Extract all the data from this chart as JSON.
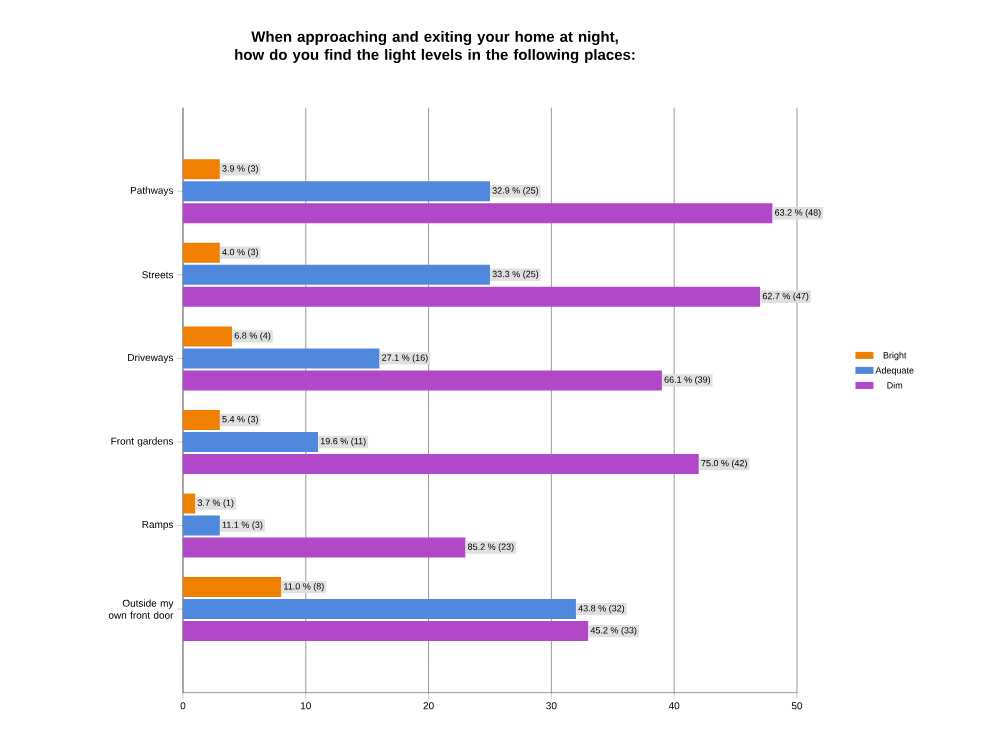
{
  "chart_data": {
    "type": "bar",
    "orientation": "horizontal",
    "title": "When approaching and exiting your home at night, how do you find the light levels in the following places:",
    "categories": [
      "Pathways",
      "Streets",
      "Driveways",
      "Front gardens",
      "Ramps",
      "Outside my own front door"
    ],
    "series": [
      {
        "name": "Bright",
        "color": "#f08000",
        "values": [
          3,
          3,
          4,
          3,
          1,
          8
        ],
        "value_labels": [
          "3.9 % (3)",
          "4.0 % (3)",
          "6.8 % (4)",
          "5.4 % (3)",
          "3.7 % (1)",
          "11.0 % (8)"
        ]
      },
      {
        "name": "Adequate",
        "color": "#4f88dc",
        "values": [
          25,
          25,
          16,
          11,
          3,
          32
        ],
        "value_labels": [
          "32.9 % (25)",
          "33.3 % (25)",
          "27.1 % (16)",
          "19.6 % (11)",
          "11.1 % (3)",
          "43.8 % (32)"
        ]
      },
      {
        "name": "Dim",
        "color": "#b048c8",
        "values": [
          48,
          47,
          39,
          42,
          23,
          33
        ],
        "value_labels": [
          "63.2 % (48)",
          "62.7 % (47)",
          "66.1 % (39)",
          "75.0 % (42)",
          "85.2 % (23)",
          "45.2 % (33)"
        ]
      }
    ],
    "xlim": [
      0,
      50
    ],
    "xticks": [
      0,
      10,
      20,
      30,
      40,
      50
    ],
    "grid": "x",
    "legend": "right"
  }
}
